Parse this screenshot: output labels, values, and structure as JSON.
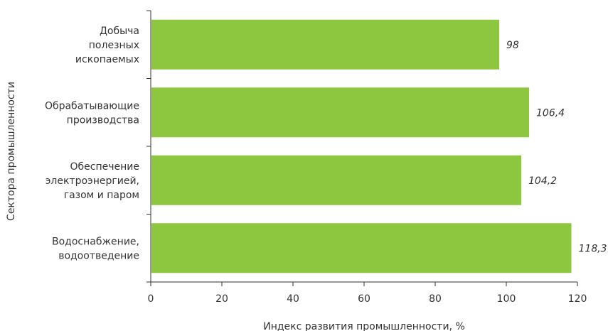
{
  "chart_data": {
    "type": "bar",
    "orientation": "horizontal",
    "categories": [
      [
        "Добыча",
        "полезных",
        "ископаемых"
      ],
      [
        "Обрабатывающие",
        "производства"
      ],
      [
        "Обеспечение",
        "электроэнергией,",
        "газом и паром"
      ],
      [
        "Водоснабжение,",
        "водоотведение"
      ]
    ],
    "values": [
      98,
      106.4,
      104.2,
      118.3
    ],
    "value_labels": [
      "98",
      "106,4",
      "104,2",
      "118,3"
    ],
    "xlabel": "Индекс развития промышленности, %",
    "ylabel": "Сектора промышленности",
    "xlim": [
      0,
      120
    ],
    "xticks": [
      0,
      20,
      40,
      60,
      80,
      100,
      120
    ],
    "bar_color": "#8dc63f",
    "grid": false
  }
}
